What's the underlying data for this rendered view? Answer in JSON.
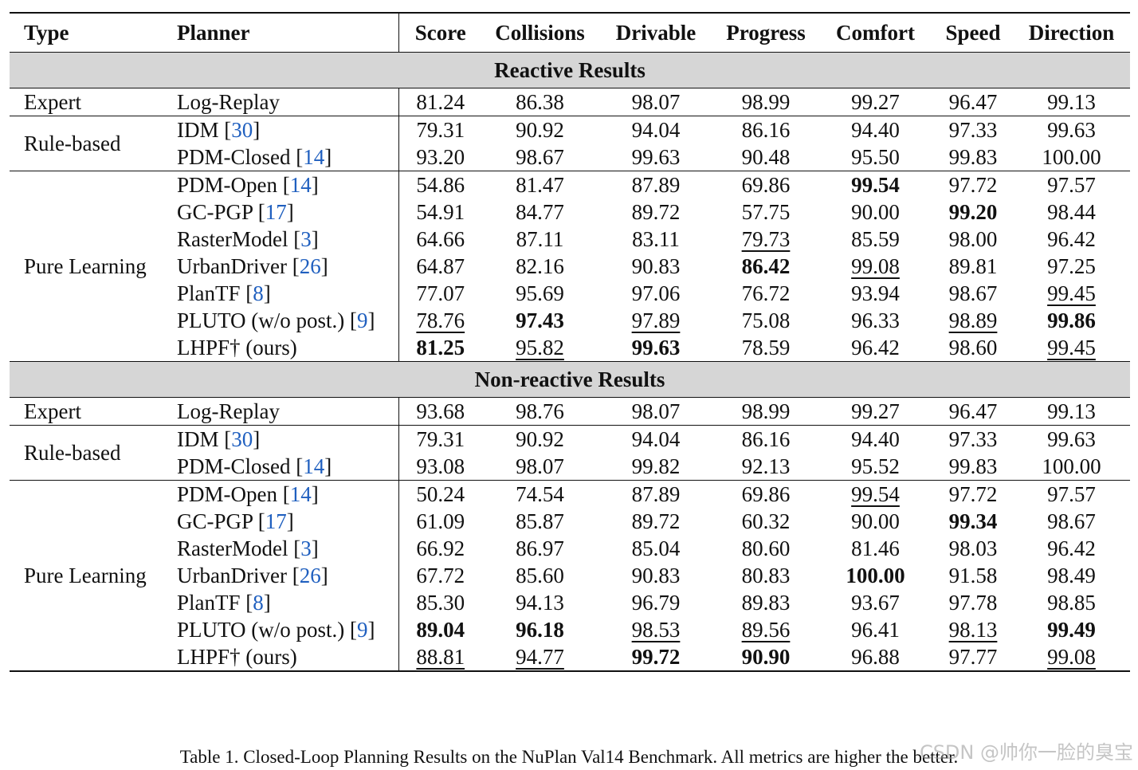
{
  "header": {
    "type": "Type",
    "planner": "Planner",
    "metrics": [
      "Score",
      "Collisions",
      "Drivable",
      "Progress",
      "Comfort",
      "Speed",
      "Direction"
    ]
  },
  "sections": [
    {
      "title": "Reactive Results",
      "groups": [
        {
          "type": "Expert",
          "rows": [
            {
              "planner": "Log-Replay",
              "ref": "",
              "suffix": "",
              "values": [
                "81.24",
                "86.38",
                "98.07",
                "98.99",
                "99.27",
                "96.47",
                "99.13"
              ],
              "bold": [],
              "underline": []
            }
          ]
        },
        {
          "type": "Rule-based",
          "rows": [
            {
              "planner": "IDM ",
              "ref": "30",
              "suffix": "",
              "values": [
                "79.31",
                "90.92",
                "94.04",
                "86.16",
                "94.40",
                "97.33",
                "99.63"
              ],
              "bold": [],
              "underline": []
            },
            {
              "planner": "PDM-Closed ",
              "ref": "14",
              "suffix": "",
              "values": [
                "93.20",
                "98.67",
                "99.63",
                "90.48",
                "95.50",
                "99.83",
                "100.00"
              ],
              "bold": [],
              "underline": []
            }
          ]
        },
        {
          "type": "Pure Learning",
          "rows": [
            {
              "planner": "PDM-Open ",
              "ref": "14",
              "suffix": "",
              "values": [
                "54.86",
                "81.47",
                "87.89",
                "69.86",
                "99.54",
                "97.72",
                "97.57"
              ],
              "bold": [
                4
              ],
              "underline": []
            },
            {
              "planner": "GC-PGP ",
              "ref": "17",
              "suffix": "",
              "values": [
                "54.91",
                "84.77",
                "89.72",
                "57.75",
                "90.00",
                "99.20",
                "98.44"
              ],
              "bold": [
                5
              ],
              "underline": []
            },
            {
              "planner": "RasterModel ",
              "ref": "3",
              "suffix": "",
              "values": [
                "64.66",
                "87.11",
                "83.11",
                "79.73",
                "85.59",
                "98.00",
                "96.42"
              ],
              "bold": [],
              "underline": [
                3
              ]
            },
            {
              "planner": "UrbanDriver ",
              "ref": "26",
              "suffix": "",
              "values": [
                "64.87",
                "82.16",
                "90.83",
                "86.42",
                "99.08",
                "89.81",
                "97.25"
              ],
              "bold": [
                3
              ],
              "underline": [
                4
              ]
            },
            {
              "planner": "PlanTF ",
              "ref": "8",
              "suffix": "",
              "values": [
                "77.07",
                "95.69",
                "97.06",
                "76.72",
                "93.94",
                "98.67",
                "99.45"
              ],
              "bold": [],
              "underline": [
                6
              ]
            },
            {
              "planner": "PLUTO (w/o post.) ",
              "ref": "9",
              "suffix": "",
              "values": [
                "78.76",
                "97.43",
                "97.89",
                "75.08",
                "96.33",
                "98.89",
                "99.86"
              ],
              "bold": [
                1,
                6
              ],
              "underline": [
                0,
                2,
                5
              ]
            },
            {
              "planner": "LHPF† (ours)",
              "ref": "",
              "suffix": "",
              "values": [
                "81.25",
                "95.82",
                "99.63",
                "78.59",
                "96.42",
                "98.60",
                "99.45"
              ],
              "bold": [
                0,
                2
              ],
              "underline": [
                1,
                6
              ]
            }
          ]
        }
      ]
    },
    {
      "title": "Non-reactive Results",
      "groups": [
        {
          "type": "Expert",
          "rows": [
            {
              "planner": "Log-Replay",
              "ref": "",
              "suffix": "",
              "values": [
                "93.68",
                "98.76",
                "98.07",
                "98.99",
                "99.27",
                "96.47",
                "99.13"
              ],
              "bold": [],
              "underline": []
            }
          ]
        },
        {
          "type": "Rule-based",
          "rows": [
            {
              "planner": "IDM ",
              "ref": "30",
              "suffix": "",
              "values": [
                "79.31",
                "90.92",
                "94.04",
                "86.16",
                "94.40",
                "97.33",
                "99.63"
              ],
              "bold": [],
              "underline": []
            },
            {
              "planner": "PDM-Closed ",
              "ref": "14",
              "suffix": "",
              "values": [
                "93.08",
                "98.07",
                "99.82",
                "92.13",
                "95.52",
                "99.83",
                "100.00"
              ],
              "bold": [],
              "underline": []
            }
          ]
        },
        {
          "type": "Pure Learning",
          "rows": [
            {
              "planner": "PDM-Open ",
              "ref": "14",
              "suffix": "",
              "values": [
                "50.24",
                "74.54",
                "87.89",
                "69.86",
                "99.54",
                "97.72",
                "97.57"
              ],
              "bold": [],
              "underline": [
                4
              ]
            },
            {
              "planner": "GC-PGP ",
              "ref": "17",
              "suffix": "",
              "values": [
                "61.09",
                "85.87",
                "89.72",
                "60.32",
                "90.00",
                "99.34",
                "98.67"
              ],
              "bold": [
                5
              ],
              "underline": []
            },
            {
              "planner": "RasterModel ",
              "ref": "3",
              "suffix": "",
              "values": [
                "66.92",
                "86.97",
                "85.04",
                "80.60",
                "81.46",
                "98.03",
                "96.42"
              ],
              "bold": [],
              "underline": []
            },
            {
              "planner": "UrbanDriver ",
              "ref": "26",
              "suffix": "",
              "values": [
                "67.72",
                "85.60",
                "90.83",
                "80.83",
                "100.00",
                "91.58",
                "98.49"
              ],
              "bold": [
                4
              ],
              "underline": []
            },
            {
              "planner": "PlanTF ",
              "ref": "8",
              "suffix": "",
              "values": [
                "85.30",
                "94.13",
                "96.79",
                "89.83",
                "93.67",
                "97.78",
                "98.85"
              ],
              "bold": [],
              "underline": []
            },
            {
              "planner": "PLUTO (w/o post.) ",
              "ref": "9",
              "suffix": "",
              "values": [
                "89.04",
                "96.18",
                "98.53",
                "89.56",
                "96.41",
                "98.13",
                "99.49"
              ],
              "bold": [
                0,
                1,
                6
              ],
              "underline": [
                2,
                3,
                5
              ]
            },
            {
              "planner": "LHPF† (ours)",
              "ref": "",
              "suffix": "",
              "values": [
                "88.81",
                "94.77",
                "99.72",
                "90.90",
                "96.88",
                "97.77",
                "99.08"
              ],
              "bold": [
                2,
                3
              ],
              "underline": [
                0,
                1,
                6
              ]
            }
          ]
        }
      ]
    }
  ],
  "caption": "Table 1. Closed-Loop Planning Results on the NuPlan Val14 Benchmark. All metrics are higher the better.",
  "watermark": "CSDN @帅你一脸的臭宝",
  "colors": {
    "section_bg": "#d6d6d6",
    "ref_link": "#1f5fbf"
  }
}
